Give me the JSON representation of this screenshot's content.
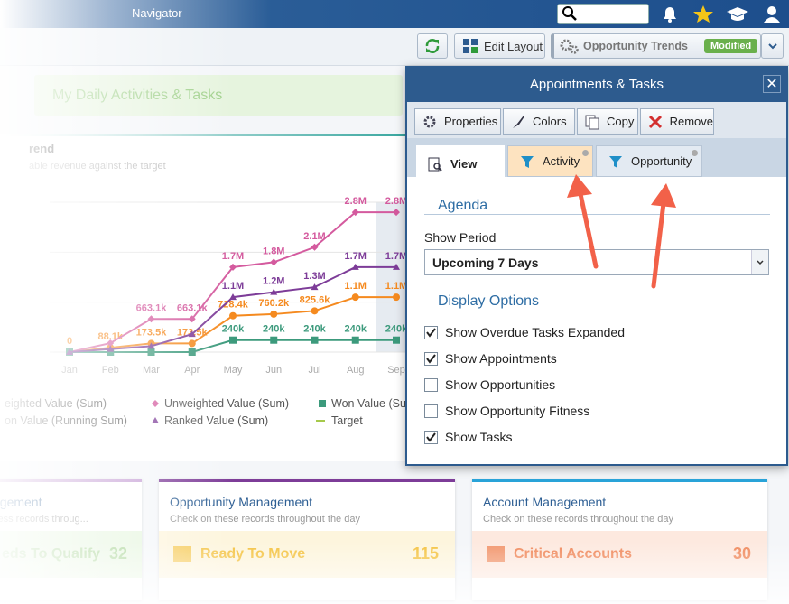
{
  "topbar": {
    "title": "Navigator"
  },
  "toolbar": {
    "edit_layout": "Edit Layout",
    "dashboard": "Opportunity Trends",
    "status": "Modified"
  },
  "dashboard": {
    "tab": "My Daily Activities & Tasks",
    "chart_data": {
      "type": "line",
      "title": "rend",
      "subtitle": "able revenue against the target",
      "categories": [
        "Jan",
        "Feb",
        "Mar",
        "Apr",
        "May",
        "Jun",
        "Jul",
        "Aug",
        "Sep"
      ],
      "ylim": [
        0,
        3000000
      ],
      "yticks": [
        0,
        1000000,
        2000000,
        3000000
      ],
      "grid": true,
      "series": [
        {
          "name": "eighted Value (Sum)",
          "color": "#f58a1f",
          "marker": "circle",
          "values": [
            0,
            88100,
            173500,
            173500,
            728400,
            760200,
            825600,
            1100000,
            1100000
          ],
          "value_labels": [
            "0",
            "88.1k",
            "173.5k",
            "173.5k",
            "728.4k",
            "760.2k",
            "825.6k",
            "1.1M",
            "1.1M"
          ]
        },
        {
          "name": "Unweighted Value (Sum)",
          "color": "#d45a9e",
          "marker": "diamond",
          "values": [
            0,
            180000,
            663100,
            663100,
            1700000,
            1800000,
            2100000,
            2800000,
            2800000
          ],
          "value_labels": [
            null,
            null,
            "663.1k",
            "663.1k",
            "1.7M",
            "1.8M",
            "2.1M",
            "2.8M",
            "2.8M"
          ]
        },
        {
          "name": "Won Value (Su",
          "color": "#3c9a7c",
          "marker": "square",
          "values": [
            0,
            0,
            0,
            0,
            240000,
            240000,
            240000,
            240000,
            240000
          ],
          "value_labels": [
            null,
            null,
            null,
            null,
            "240k",
            "240k",
            "240k",
            "240k",
            "240k"
          ]
        },
        {
          "name": "on Value (Running Sum)",
          "color": "#5aa0c8",
          "marker": "circle",
          "values": [
            null,
            null,
            null,
            null,
            null,
            null,
            null,
            null,
            null
          ]
        },
        {
          "name": "Ranked Value (Sum)",
          "color": "#7d3c98",
          "marker": "triangle",
          "values": [
            0,
            60000,
            120000,
            360000,
            1100000,
            1200000,
            1300000,
            1700000,
            1700000
          ],
          "value_labels": [
            null,
            null,
            null,
            null,
            "1.1M",
            "1.2M",
            "1.3M",
            "1.7M",
            "1.7M"
          ]
        },
        {
          "name": "Target",
          "color": "#a6c94b",
          "marker": "dash",
          "values": [
            null,
            null,
            null,
            null,
            null,
            null,
            null,
            null,
            null
          ]
        }
      ]
    },
    "cards": [
      {
        "title": "agement",
        "subtitle": "cess records throug...",
        "item": "eds To Qualify",
        "count": 32
      },
      {
        "title": "Opportunity Management",
        "subtitle": "Check on these records throughout the day",
        "item": "Ready To Move",
        "count": 115
      },
      {
        "title": "Account Management",
        "subtitle": "Check on these records throughout the day",
        "item": "Critical Accounts",
        "count": 30
      }
    ]
  },
  "dialog": {
    "title": "Appointments & Tasks",
    "buttons": [
      "Properties",
      "Colors",
      "Copy",
      "Remove"
    ],
    "tabs": [
      "View",
      "Activity",
      "Opportunity"
    ],
    "agenda": "Agenda",
    "show_period_label": "Show Period",
    "show_period": "Upcoming 7 Days",
    "display_options": "Display Options",
    "options": [
      {
        "label": "Show Overdue Tasks Expanded",
        "checked": true
      },
      {
        "label": "Show Appointments",
        "checked": true
      },
      {
        "label": "Show Opportunities",
        "checked": false
      },
      {
        "label": "Show Opportunity Fitness",
        "checked": false
      },
      {
        "label": "Show Tasks",
        "checked": true
      }
    ]
  }
}
